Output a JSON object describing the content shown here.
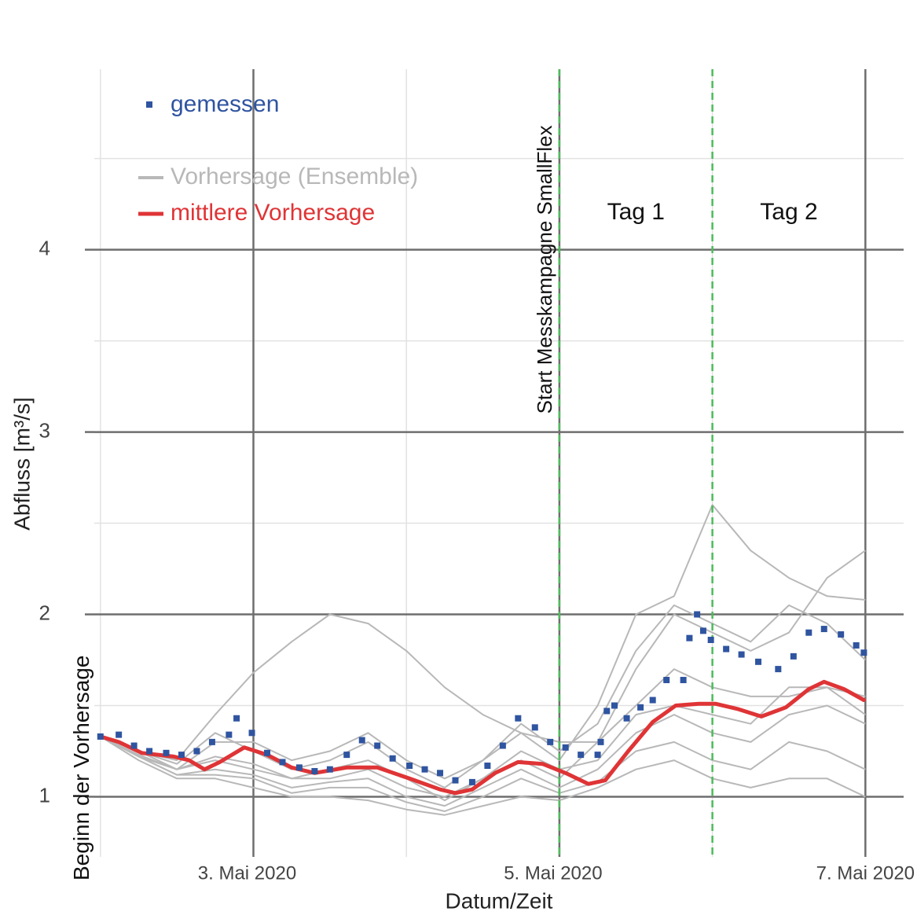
{
  "chart_data": {
    "type": "line",
    "x_label": "Datum/Zeit",
    "y_label": "Abfluss  [m³/s]",
    "xlim": [
      1.96,
      7.25
    ],
    "ylim": [
      0.67,
      4.99
    ],
    "xticks": [
      {
        "value": 3,
        "label": "3. Mai 2020"
      },
      {
        "value": 5,
        "label": "5. Mai 2020"
      },
      {
        "value": 7,
        "label": "7. Mai 2020"
      }
    ],
    "xminor": [
      2,
      4,
      6
    ],
    "yticks": [
      1,
      2,
      3,
      4
    ],
    "yminor": [
      1.5,
      2.5,
      3.5,
      4.5
    ],
    "grid": true,
    "legend": "top-left",
    "vlines": [
      5,
      6
    ],
    "vline_color": "#4cbb5a",
    "annotations": {
      "start": "Beginn der Vorhersage",
      "campaign": "Start Messkampagne SmallFlex",
      "day1": "Tag 1",
      "day2": "Tag 2"
    },
    "measured": {
      "name": "gemessen",
      "color": "#2f54a0",
      "x": [
        2.0,
        2.12,
        2.22,
        2.32,
        2.43,
        2.53,
        2.63,
        2.73,
        2.84,
        2.89,
        2.99,
        3.09,
        3.19,
        3.3,
        3.4,
        3.5,
        3.61,
        3.71,
        3.81,
        3.91,
        4.02,
        4.12,
        4.22,
        4.32,
        4.43,
        4.53,
        4.63,
        4.73,
        4.84,
        4.94,
        5.04,
        5.14,
        5.25,
        5.27,
        5.31,
        5.36,
        5.44,
        5.53,
        5.61,
        5.7,
        5.81,
        5.85,
        5.9,
        5.94,
        5.99,
        6.09,
        6.19,
        6.3,
        6.43,
        6.53,
        6.63,
        6.73,
        6.84,
        6.94,
        6.99
      ],
      "values": [
        1.33,
        1.34,
        1.28,
        1.25,
        1.24,
        1.23,
        1.25,
        1.3,
        1.34,
        1.43,
        1.35,
        1.24,
        1.19,
        1.16,
        1.14,
        1.15,
        1.23,
        1.31,
        1.28,
        1.21,
        1.17,
        1.15,
        1.13,
        1.09,
        1.08,
        1.17,
        1.28,
        1.43,
        1.38,
        1.3,
        1.27,
        1.23,
        1.23,
        1.3,
        1.47,
        1.5,
        1.43,
        1.49,
        1.53,
        1.64,
        1.64,
        1.87,
        2.0,
        1.91,
        1.86,
        1.81,
        1.78,
        1.74,
        1.7,
        1.77,
        1.9,
        1.92,
        1.89,
        1.83,
        1.79
      ]
    },
    "ensemble": {
      "name": "Vorhersage (Ensemble)",
      "color": "#b8b8b8",
      "x": [
        2.0,
        2.25,
        2.5,
        2.75,
        3.0,
        3.25,
        3.5,
        3.75,
        4.0,
        4.25,
        4.5,
        4.75,
        5.0,
        5.25,
        5.5,
        5.75,
        6.0,
        6.25,
        6.5,
        6.75,
        7.0
      ],
      "members": [
        [
          1.33,
          1.25,
          1.2,
          1.45,
          1.68,
          1.85,
          2.0,
          1.95,
          1.8,
          1.6,
          1.45,
          1.35,
          1.3,
          1.3,
          1.5,
          1.7,
          1.6,
          1.55,
          1.55,
          1.6,
          1.55
        ],
        [
          1.33,
          1.25,
          1.15,
          1.3,
          1.3,
          1.2,
          1.25,
          1.35,
          1.2,
          1.1,
          1.2,
          1.35,
          1.2,
          1.5,
          2.0,
          2.1,
          2.6,
          2.35,
          2.2,
          2.1,
          2.08
        ],
        [
          1.33,
          1.22,
          1.15,
          1.2,
          1.15,
          1.1,
          1.1,
          1.15,
          1.05,
          1.0,
          1.1,
          1.2,
          1.1,
          1.3,
          1.7,
          2.0,
          1.9,
          1.8,
          1.9,
          2.2,
          2.35
        ],
        [
          1.33,
          1.2,
          1.1,
          1.1,
          1.05,
          1.0,
          1.0,
          0.98,
          0.93,
          0.9,
          0.95,
          1.0,
          0.98,
          1.05,
          1.15,
          1.2,
          1.1,
          1.05,
          1.1,
          1.1,
          1.0
        ],
        [
          1.33,
          1.22,
          1.12,
          1.15,
          1.12,
          1.05,
          1.08,
          1.1,
          1.0,
          0.95,
          1.05,
          1.15,
          1.05,
          1.15,
          1.35,
          1.45,
          1.35,
          1.3,
          1.45,
          1.5,
          1.4
        ],
        [
          1.33,
          1.25,
          1.18,
          1.35,
          1.25,
          1.15,
          1.2,
          1.3,
          1.15,
          1.05,
          1.2,
          1.4,
          1.25,
          1.4,
          1.8,
          2.05,
          1.95,
          1.85,
          2.05,
          1.95,
          1.75
        ],
        [
          1.33,
          1.23,
          1.15,
          1.22,
          1.18,
          1.1,
          1.15,
          1.2,
          1.1,
          0.98,
          1.1,
          1.25,
          1.15,
          1.2,
          1.45,
          1.5,
          1.45,
          1.4,
          1.6,
          1.6,
          1.45
        ],
        [
          1.33,
          1.22,
          1.12,
          1.12,
          1.1,
          1.02,
          1.05,
          1.05,
          0.97,
          0.92,
          1.0,
          1.1,
          1.02,
          1.08,
          1.25,
          1.3,
          1.2,
          1.15,
          1.3,
          1.25,
          1.15
        ]
      ]
    },
    "mean": {
      "name": "mittlere Vorhersage",
      "color": "#df3436",
      "x": [
        2.0,
        2.12,
        2.27,
        2.48,
        2.58,
        2.68,
        2.78,
        2.94,
        3.09,
        3.25,
        3.4,
        3.61,
        3.81,
        4.02,
        4.22,
        4.32,
        4.43,
        4.58,
        4.73,
        4.89,
        5.04,
        5.19,
        5.3,
        5.45,
        5.61,
        5.76,
        5.91,
        6.02,
        6.17,
        6.32,
        6.48,
        6.63,
        6.73,
        6.86,
        6.99
      ],
      "values": [
        1.33,
        1.3,
        1.24,
        1.22,
        1.2,
        1.15,
        1.19,
        1.27,
        1.23,
        1.16,
        1.13,
        1.16,
        1.16,
        1.1,
        1.04,
        1.02,
        1.04,
        1.13,
        1.19,
        1.18,
        1.13,
        1.07,
        1.09,
        1.25,
        1.41,
        1.5,
        1.51,
        1.51,
        1.48,
        1.44,
        1.49,
        1.59,
        1.63,
        1.59,
        1.53
      ]
    }
  }
}
